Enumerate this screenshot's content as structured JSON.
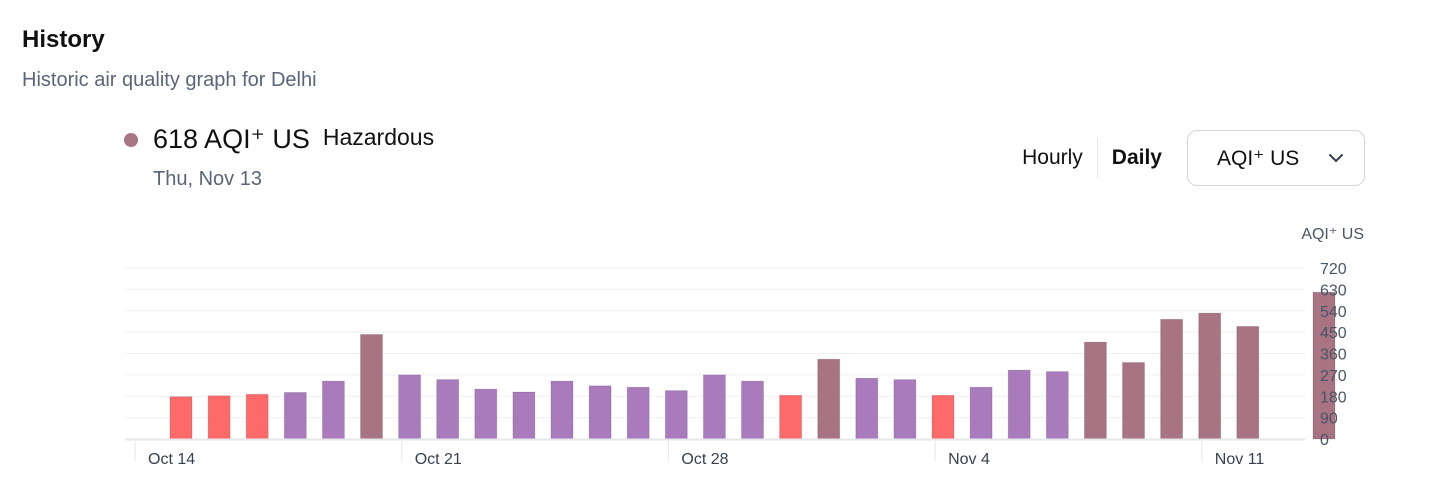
{
  "header": {
    "title": "History",
    "subtitle": "Historic air quality graph for Delhi"
  },
  "current": {
    "value": "618 AQI⁺ US",
    "level": "Hazardous",
    "date": "Thu, Nov 13",
    "color": "#a67684"
  },
  "controls": {
    "hourly_label": "Hourly",
    "daily_label": "Daily",
    "selected": "Daily",
    "metric_select": "AQI⁺ US"
  },
  "colors": {
    "unhealthy": "#fe6a69",
    "very_unhealthy": "#a97abc",
    "hazardous": "#a87383"
  },
  "chart_data": {
    "type": "bar",
    "ylabel": "AQI⁺ US",
    "ylim": [
      0,
      720
    ],
    "yticks": [
      0,
      90,
      180,
      270,
      360,
      450,
      540,
      630,
      720
    ],
    "x_tick_labels": [
      {
        "label": "Oct 14",
        "index": 0
      },
      {
        "label": "Oct 21",
        "index": 7
      },
      {
        "label": "Oct 28",
        "index": 14
      },
      {
        "label": "Nov 4",
        "index": 21
      },
      {
        "label": "Nov 11",
        "index": 28
      }
    ],
    "categories": [
      "Oct 14",
      "Oct 15",
      "Oct 16",
      "Oct 17",
      "Oct 18",
      "Oct 19",
      "Oct 20",
      "Oct 21",
      "Oct 22",
      "Oct 23",
      "Oct 24",
      "Oct 25",
      "Oct 26",
      "Oct 27",
      "Oct 28",
      "Oct 29",
      "Oct 30",
      "Oct 31",
      "Nov 1",
      "Nov 2",
      "Nov 3",
      "Nov 4",
      "Nov 5",
      "Nov 6",
      "Nov 7",
      "Nov 8",
      "Nov 9",
      "Nov 10",
      "Nov 11",
      "Nov 12",
      "Nov 13"
    ],
    "values": [
      178,
      182,
      188,
      196,
      244,
      440,
      270,
      250,
      210,
      198,
      244,
      224,
      218,
      204,
      270,
      244,
      184,
      336,
      256,
      250,
      184,
      218,
      290,
      284,
      408,
      322,
      504,
      530,
      474,
      0,
      618
    ],
    "levels": [
      "unhealthy",
      "unhealthy",
      "unhealthy",
      "very_unhealthy",
      "very_unhealthy",
      "hazardous",
      "very_unhealthy",
      "very_unhealthy",
      "very_unhealthy",
      "very_unhealthy",
      "very_unhealthy",
      "very_unhealthy",
      "very_unhealthy",
      "very_unhealthy",
      "very_unhealthy",
      "very_unhealthy",
      "unhealthy",
      "hazardous",
      "very_unhealthy",
      "very_unhealthy",
      "unhealthy",
      "very_unhealthy",
      "very_unhealthy",
      "very_unhealthy",
      "hazardous",
      "hazardous",
      "hazardous",
      "hazardous",
      "hazardous",
      "none",
      "hazardous"
    ],
    "grid": true
  }
}
